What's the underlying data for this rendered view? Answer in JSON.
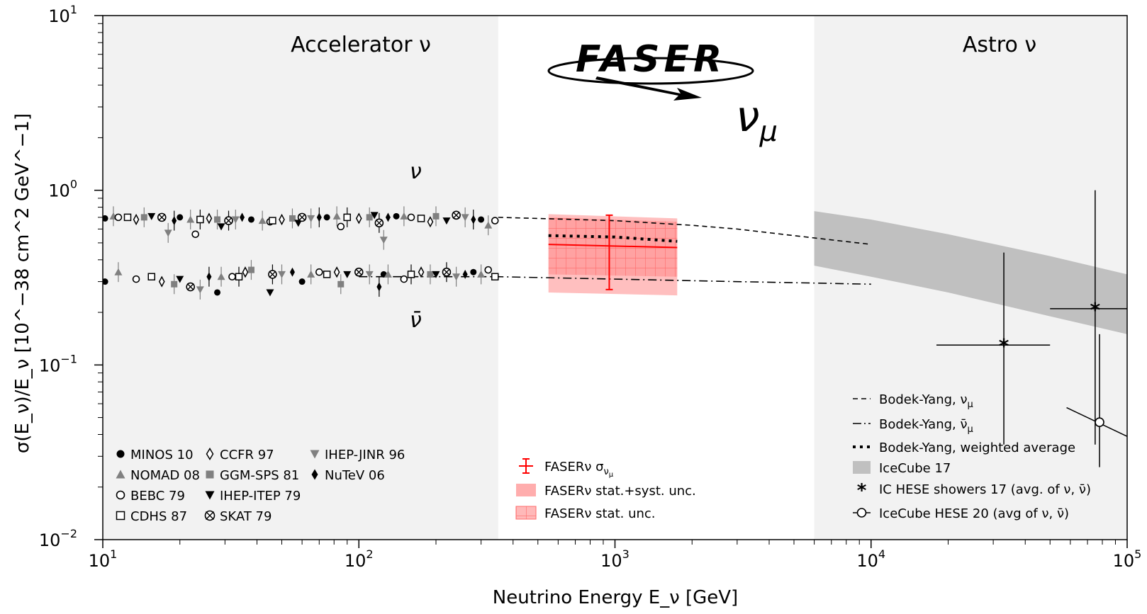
{
  "chart_data": {
    "type": "scatter",
    "title": "",
    "xlabel": "Neutrino Energy E_ν [GeV]",
    "ylabel": "σ(E_ν)/E_ν [10^−38 cm^2 GeV^−1]",
    "xscale": "log",
    "yscale": "log",
    "xlim": [
      10,
      100000
    ],
    "ylim": [
      0.01,
      10
    ],
    "x_ticks": [
      {
        "base": "10",
        "exp": "1",
        "v": 10
      },
      {
        "base": "10",
        "exp": "2",
        "v": 100
      },
      {
        "base": "10",
        "exp": "3",
        "v": 1000
      },
      {
        "base": "10",
        "exp": "4",
        "v": 10000
      },
      {
        "base": "10",
        "exp": "5",
        "v": 100000
      }
    ],
    "y_ticks": [
      {
        "base": "10",
        "exp": "−2",
        "v": 0.01
      },
      {
        "base": "10",
        "exp": "−1",
        "v": 0.1
      },
      {
        "base": "10",
        "exp": "0",
        "v": 1
      },
      {
        "base": "10",
        "exp": "1",
        "v": 10
      }
    ],
    "regions": [
      {
        "label": "Accelerator ν",
        "x_range": [
          10,
          350
        ]
      },
      {
        "label": "Astro ν",
        "x_range": [
          6000,
          100000
        ]
      }
    ],
    "annotations": {
      "nu": "ν",
      "nubar": "ν̄",
      "logo": "FASER",
      "numu": "ν",
      "numu_sub": "μ"
    },
    "accelerator_nu_points": [
      [
        10.2,
        0.69
      ],
      [
        11,
        0.71
      ],
      [
        11.5,
        0.7
      ],
      [
        12.5,
        0.7
      ],
      [
        13.5,
        0.68
      ],
      [
        14.5,
        0.7
      ],
      [
        15.5,
        0.71
      ],
      [
        17,
        0.7
      ],
      [
        18,
        0.57
      ],
      [
        19,
        0.67
      ],
      [
        20,
        0.7
      ],
      [
        22,
        0.68
      ],
      [
        23,
        0.56
      ],
      [
        24,
        0.68
      ],
      [
        26,
        0.69
      ],
      [
        28,
        0.68
      ],
      [
        29,
        0.62
      ],
      [
        31,
        0.67
      ],
      [
        33,
        0.68
      ],
      [
        35,
        0.7
      ],
      [
        38,
        0.68
      ],
      [
        42,
        0.67
      ],
      [
        45,
        0.66
      ],
      [
        46,
        0.67
      ],
      [
        50,
        0.68
      ],
      [
        55,
        0.69
      ],
      [
        58,
        0.65
      ],
      [
        60,
        0.7
      ],
      [
        65,
        0.69
      ],
      [
        70,
        0.7
      ],
      [
        75,
        0.7
      ],
      [
        82,
        0.71
      ],
      [
        85,
        0.62
      ],
      [
        90,
        0.7
      ],
      [
        100,
        0.69
      ],
      [
        110,
        0.7
      ],
      [
        115,
        0.72
      ],
      [
        120,
        0.65
      ],
      [
        125,
        0.52
      ],
      [
        130,
        0.7
      ],
      [
        140,
        0.71
      ],
      [
        150,
        0.71
      ],
      [
        160,
        0.7
      ],
      [
        175,
        0.69
      ],
      [
        190,
        0.66
      ],
      [
        200,
        0.71
      ],
      [
        220,
        0.67
      ],
      [
        240,
        0.72
      ],
      [
        260,
        0.7
      ],
      [
        280,
        0.68
      ],
      [
        300,
        0.68
      ],
      [
        320,
        0.63
      ],
      [
        340,
        0.67
      ]
    ],
    "accelerator_nubar_points": [
      [
        10.2,
        0.3
      ],
      [
        11.5,
        0.34
      ],
      [
        13.5,
        0.31
      ],
      [
        15.5,
        0.32
      ],
      [
        17,
        0.3
      ],
      [
        19,
        0.29
      ],
      [
        20,
        0.31
      ],
      [
        22,
        0.28
      ],
      [
        24,
        0.27
      ],
      [
        26,
        0.32
      ],
      [
        28,
        0.26
      ],
      [
        29,
        0.32
      ],
      [
        32,
        0.32
      ],
      [
        34,
        0.32
      ],
      [
        36,
        0.34
      ],
      [
        38,
        0.35
      ],
      [
        45,
        0.26
      ],
      [
        46,
        0.33
      ],
      [
        50,
        0.33
      ],
      [
        55,
        0.34
      ],
      [
        60,
        0.3
      ],
      [
        65,
        0.33
      ],
      [
        70,
        0.34
      ],
      [
        75,
        0.33
      ],
      [
        82,
        0.34
      ],
      [
        85,
        0.29
      ],
      [
        90,
        0.33
      ],
      [
        100,
        0.34
      ],
      [
        110,
        0.33
      ],
      [
        120,
        0.28
      ],
      [
        125,
        0.33
      ],
      [
        130,
        0.33
      ],
      [
        150,
        0.31
      ],
      [
        160,
        0.33
      ],
      [
        175,
        0.34
      ],
      [
        190,
        0.33
      ],
      [
        200,
        0.33
      ],
      [
        220,
        0.34
      ],
      [
        240,
        0.32
      ],
      [
        260,
        0.33
      ],
      [
        280,
        0.34
      ],
      [
        300,
        0.33
      ],
      [
        320,
        0.35
      ],
      [
        340,
        0.32
      ]
    ],
    "series": [
      {
        "name": "Bodek-Yang, ν_μ",
        "style": "dashed",
        "x": [
          350,
          1000,
          2000,
          3000,
          5000,
          10000
        ],
        "y": [
          0.7,
          0.67,
          0.63,
          0.6,
          0.55,
          0.49
        ]
      },
      {
        "name": "Bodek-Yang, ν̄_μ",
        "style": "dashdot",
        "x": [
          100,
          350,
          1000,
          3000,
          10000
        ],
        "y": [
          0.32,
          0.32,
          0.31,
          0.3,
          0.29
        ]
      },
      {
        "name": "Bodek-Yang, weighted average",
        "style": "dotted",
        "x": [
          550,
          1000,
          1750
        ],
        "y": [
          0.55,
          0.54,
          0.51
        ]
      },
      {
        "name": "IceCube 17",
        "style": "band",
        "x": [
          6000,
          10000,
          20000,
          50000,
          100000
        ],
        "y_low": [
          0.37,
          0.32,
          0.26,
          0.19,
          0.15
        ],
        "y_high": [
          0.76,
          0.68,
          0.56,
          0.42,
          0.33
        ]
      },
      {
        "name": "FASERν stat.+syst. unc.",
        "style": "band",
        "x": [
          550,
          1750
        ],
        "y_low": [
          0.26,
          0.25
        ],
        "y_high": [
          0.73,
          0.69
        ]
      },
      {
        "name": "FASERν stat. unc.",
        "style": "hatched-band",
        "x": [
          550,
          1750
        ],
        "y_low": [
          0.33,
          0.32
        ],
        "y_high": [
          0.7,
          0.66
        ]
      },
      {
        "name": "FASERν σ_νμ",
        "style": "errorbar",
        "x": [
          550,
          1750
        ],
        "y": [
          0.49,
          0.47
        ],
        "point": {
          "x": 950,
          "y": 0.48,
          "y_err_low": 0.27,
          "y_err_high": 0.72
        }
      },
      {
        "name": "IC HESE showers 17 (avg. of ν, ν̄)",
        "style": "star-errorbar",
        "points": [
          {
            "x": 33000,
            "y": 0.13,
            "x_low": 18000,
            "x_high": 50000,
            "y_low": 0.035,
            "y_high": 0.44
          },
          {
            "x": 75000,
            "y": 0.21,
            "x_low": 50000,
            "x_high": 100000,
            "y_low": 0.035,
            "y_high": 1.0
          }
        ]
      },
      {
        "name": "IceCube HESE 20 (avg of ν,  ν̄)",
        "style": "open-circle-errorbar",
        "points": [
          {
            "x": 78000,
            "y": 0.047,
            "y_low": 0.026,
            "y_high": 0.15
          }
        ]
      }
    ],
    "legend_experiments": [
      {
        "label": "MINOS 10",
        "marker": "filled-circle",
        "color": "#000000"
      },
      {
        "label": "NOMAD 08",
        "marker": "triangle-up",
        "color": "#808080"
      },
      {
        "label": "BEBC 79",
        "marker": "open-circle",
        "color": "#000000"
      },
      {
        "label": "CDHS 87",
        "marker": "open-square",
        "color": "#000000"
      },
      {
        "label": "CCFR 97",
        "marker": "open-diamond",
        "color": "#000000"
      },
      {
        "label": "GGM-SPS 81",
        "marker": "filled-square",
        "color": "#808080"
      },
      {
        "label": "IHEP-ITEP 79",
        "marker": "triangle-down",
        "color": "#000000"
      },
      {
        "label": "SKAT 79",
        "marker": "circle-cross",
        "color": "#000000"
      },
      {
        "label": "IHEP-JINR 96",
        "marker": "triangle-down",
        "color": "#808080"
      },
      {
        "label": "NuTeV 06",
        "marker": "filled-diamond",
        "color": "#000000"
      }
    ],
    "legend_faser": [
      {
        "label": "FASERν σ",
        "sub": "ν",
        "subsub": "μ"
      },
      {
        "label": "FASERν stat.+syst. unc."
      },
      {
        "label": "FASERν stat. unc."
      }
    ],
    "legend_right": [
      {
        "label": "Bodek-Yang, ν",
        "sub": "μ"
      },
      {
        "label": "Bodek-Yang, ν̄",
        "sub": "μ"
      },
      {
        "label": "Bodek-Yang, weighted average"
      },
      {
        "label": "IceCube 17"
      },
      {
        "label": "IC HESE showers 17 (avg. of ν, ν̄)"
      },
      {
        "label": "IceCube HESE 20 (avg of ν,  ν̄)"
      }
    ],
    "grid": false,
    "colors": {
      "faser": "#ff0000",
      "band_stat_syst": "#ff8a8a",
      "icecube_band": "#c0c0c0",
      "region_bg": "#f2f2f2",
      "nomad": "#808080"
    }
  }
}
